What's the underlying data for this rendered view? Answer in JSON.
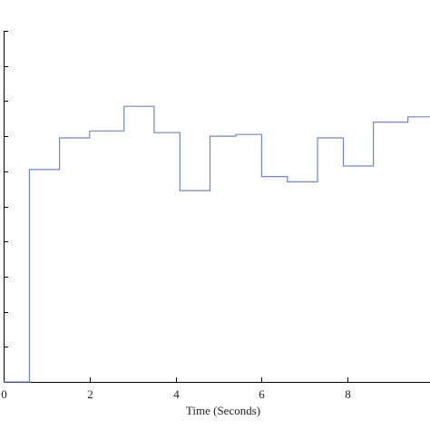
{
  "chart_data": {
    "type": "line",
    "step": "post",
    "title": "",
    "xlabel": "Time (Seconds)",
    "ylabel": "",
    "xlim": [
      0,
      10
    ],
    "ylim": [
      0,
      10
    ],
    "x_ticks": [
      0,
      2,
      4,
      6,
      8
    ],
    "x_tick_labels": [
      "0",
      "2",
      "4",
      "6",
      "8"
    ],
    "y_ticks": [
      0,
      1,
      2,
      3,
      4,
      5,
      6,
      7,
      8,
      9,
      10
    ],
    "grid": false,
    "line_color": "#6f86d6",
    "series": [
      {
        "x": [
          0,
          0.6,
          1.3,
          2.0,
          2.8,
          3.5,
          4.1,
          4.8,
          5.4,
          6.0,
          6.6,
          7.3,
          7.9,
          8.6,
          9.4,
          10.0
        ],
        "y": [
          0,
          6.05,
          6.95,
          7.15,
          7.85,
          7.1,
          5.45,
          7.0,
          7.05,
          5.85,
          5.7,
          6.95,
          6.15,
          7.4,
          7.55,
          7.55
        ]
      }
    ]
  }
}
